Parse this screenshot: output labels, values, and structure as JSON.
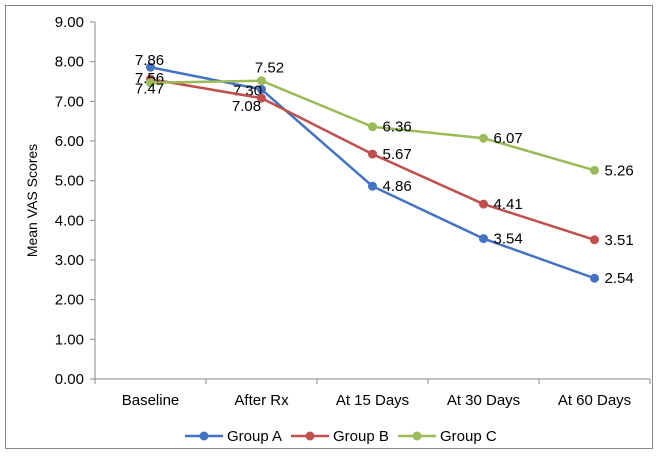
{
  "chart_data": {
    "type": "line",
    "title": "",
    "xlabel": "",
    "ylabel": "Mean VAS Scores",
    "ylim": [
      0,
      9
    ],
    "yticks": [
      "0.00",
      "1.00",
      "2.00",
      "3.00",
      "4.00",
      "5.00",
      "6.00",
      "7.00",
      "8.00",
      "9.00"
    ],
    "categories": [
      "Baseline",
      "After Rx",
      "At 15 Days",
      "At 30 Days",
      "At 60 Days"
    ],
    "grid": false,
    "legend_position": "bottom",
    "series": [
      {
        "name": "Group A",
        "color": "#4472C4",
        "values": [
          7.86,
          7.3,
          4.86,
          3.54,
          2.54
        ],
        "labels": [
          "7.86",
          "7.30",
          "4.86",
          "3.54",
          "2.54"
        ]
      },
      {
        "name": "Group B",
        "color": "#C0504D",
        "values": [
          7.56,
          7.08,
          5.67,
          4.41,
          3.51
        ],
        "labels": [
          "7.56",
          "7.08",
          "5.67",
          "4.41",
          "3.51"
        ]
      },
      {
        "name": "Group C",
        "color": "#9BBB59",
        "values": [
          7.47,
          7.52,
          6.36,
          6.07,
          5.26
        ],
        "labels": [
          "7.47",
          "7.52",
          "6.36",
          "6.07",
          "5.26"
        ]
      }
    ]
  }
}
